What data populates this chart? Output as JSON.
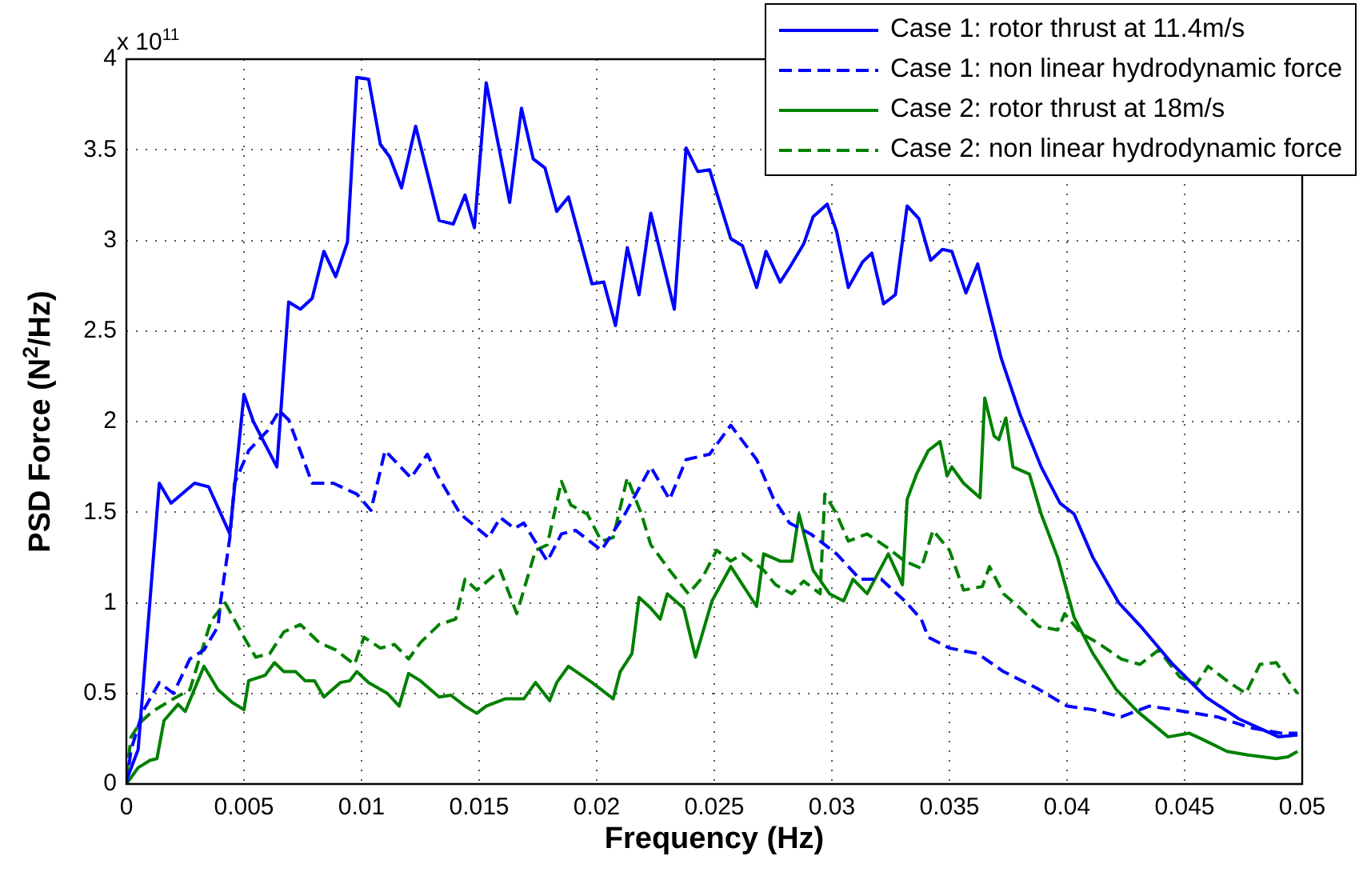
{
  "chart_data": {
    "type": "line",
    "xlabel": "Frequency (Hz)",
    "ylabel": "PSD Force (N$^{2}$/Hz)",
    "annotations": [
      "x 10$^{11}$"
    ],
    "xlim": [
      0,
      0.05
    ],
    "xticks": [
      0,
      0.005,
      0.01,
      0.015,
      0.02,
      0.025,
      0.03,
      0.035,
      0.04,
      0.045,
      0.05
    ],
    "ylim": [
      0,
      4
    ],
    "yticks": [
      0,
      0.5,
      1,
      1.5,
      2,
      2.5,
      3,
      3.5,
      4
    ],
    "grid": true,
    "legend": "top right",
    "marker": "none",
    "series": [
      {
        "name": "Case 1: rotor thrust at 11.4m/s",
        "color": "#0000ff",
        "line_style": "solid",
        "x": [
          0,
          0.0005,
          0.0014,
          0.0019,
          0.0029,
          0.0035,
          0.0044,
          0.005,
          0.0054,
          0.0064,
          0.0069,
          0.0074,
          0.0079,
          0.0084,
          0.0089,
          0.0094,
          0.0098,
          0.0103,
          0.0108,
          0.0112,
          0.0117,
          0.0123,
          0.0133,
          0.0139,
          0.0144,
          0.0148,
          0.0153,
          0.0163,
          0.0168,
          0.0173,
          0.0178,
          0.0183,
          0.0188,
          0.0198,
          0.0203,
          0.0208,
          0.0213,
          0.0218,
          0.0223,
          0.0233,
          0.0238,
          0.0243,
          0.0248,
          0.0257,
          0.0262,
          0.0268,
          0.0272,
          0.0278,
          0.0282,
          0.0288,
          0.0292,
          0.0298,
          0.0302,
          0.0307,
          0.0313,
          0.0317,
          0.0322,
          0.0327,
          0.0332,
          0.0337,
          0.0342,
          0.0347,
          0.0351,
          0.0357,
          0.0362,
          0.0372,
          0.038,
          0.0389,
          0.0397,
          0.0403,
          0.0411,
          0.0422,
          0.0432,
          0.0445,
          0.0459,
          0.0473,
          0.049,
          0.0498
        ],
        "values": [
          0.02,
          0.19,
          1.66,
          1.55,
          1.66,
          1.64,
          1.38,
          2.15,
          2.0,
          1.75,
          2.66,
          2.62,
          2.68,
          2.94,
          2.8,
          2.99,
          3.9,
          3.89,
          3.53,
          3.46,
          3.29,
          3.63,
          3.11,
          3.09,
          3.25,
          3.07,
          3.87,
          3.21,
          3.73,
          3.45,
          3.4,
          3.16,
          3.24,
          2.76,
          2.77,
          2.53,
          2.96,
          2.7,
          3.15,
          2.62,
          3.51,
          3.38,
          3.39,
          3.01,
          2.97,
          2.74,
          2.94,
          2.77,
          2.85,
          2.98,
          3.13,
          3.2,
          3.05,
          2.74,
          2.88,
          2.93,
          2.65,
          2.7,
          3.19,
          3.12,
          2.89,
          2.95,
          2.94,
          2.71,
          2.87,
          2.35,
          2.04,
          1.75,
          1.55,
          1.49,
          1.25,
          1.0,
          0.86,
          0.66,
          0.48,
          0.36,
          0.26,
          0.27
        ]
      },
      {
        "name": "Case 1: non linear hydrodynamic force",
        "color": "#0000ff",
        "line_style": "dashed",
        "x": [
          0,
          0.0002,
          0.0007,
          0.0014,
          0.002,
          0.0027,
          0.0033,
          0.0039,
          0.004,
          0.0044,
          0.0046,
          0.0052,
          0.006,
          0.0065,
          0.0069,
          0.0079,
          0.0088,
          0.0098,
          0.0104,
          0.011,
          0.0121,
          0.0128,
          0.0132,
          0.0142,
          0.0154,
          0.0159,
          0.0165,
          0.0169,
          0.0179,
          0.0185,
          0.0191,
          0.0202,
          0.0212,
          0.0223,
          0.0231,
          0.0238,
          0.0248,
          0.0257,
          0.0268,
          0.0275,
          0.0282,
          0.0291,
          0.0302,
          0.0312,
          0.0321,
          0.0331,
          0.0338,
          0.0341,
          0.035,
          0.0362,
          0.0373,
          0.0387,
          0.04,
          0.0411,
          0.0423,
          0.0435,
          0.045,
          0.0464,
          0.0478,
          0.0491,
          0.0498
        ],
        "values": [
          0,
          0.19,
          0.4,
          0.56,
          0.5,
          0.69,
          0.74,
          0.87,
          1.0,
          1.36,
          1.66,
          1.84,
          1.95,
          2.06,
          2.01,
          1.66,
          1.66,
          1.6,
          1.51,
          1.84,
          1.69,
          1.82,
          1.71,
          1.49,
          1.36,
          1.47,
          1.41,
          1.44,
          1.23,
          1.38,
          1.4,
          1.29,
          1.49,
          1.75,
          1.57,
          1.79,
          1.82,
          1.98,
          1.79,
          1.58,
          1.44,
          1.38,
          1.27,
          1.13,
          1.13,
          1.01,
          0.91,
          0.81,
          0.75,
          0.72,
          0.62,
          0.53,
          0.43,
          0.41,
          0.37,
          0.43,
          0.4,
          0.37,
          0.31,
          0.28,
          0.28
        ]
      },
      {
        "name": "Case 2: rotor thrust at 18m/s",
        "color": "#008000",
        "line_style": "solid",
        "x": [
          0,
          0.0005,
          0.001,
          0.0013,
          0.0016,
          0.0022,
          0.0025,
          0.0033,
          0.0039,
          0.0045,
          0.005,
          0.0052,
          0.0059,
          0.0063,
          0.0067,
          0.0072,
          0.0076,
          0.008,
          0.0084,
          0.0091,
          0.0095,
          0.0098,
          0.0103,
          0.0111,
          0.0116,
          0.012,
          0.0125,
          0.0133,
          0.0138,
          0.0144,
          0.0149,
          0.0153,
          0.0161,
          0.0169,
          0.0174,
          0.018,
          0.0183,
          0.0188,
          0.0198,
          0.0207,
          0.021,
          0.0215,
          0.0218,
          0.0223,
          0.0227,
          0.023,
          0.0237,
          0.0242,
          0.0249,
          0.0257,
          0.0262,
          0.0268,
          0.0271,
          0.0278,
          0.0283,
          0.0286,
          0.0292,
          0.0299,
          0.0305,
          0.0309,
          0.0315,
          0.0324,
          0.033,
          0.0332,
          0.0336,
          0.0341,
          0.0346,
          0.0349,
          0.0351,
          0.0356,
          0.0363,
          0.0365,
          0.0369,
          0.0371,
          0.0374,
          0.0377,
          0.0384,
          0.0389,
          0.0396,
          0.0403,
          0.0411,
          0.0421,
          0.043,
          0.0443,
          0.0452,
          0.0457,
          0.0468,
          0.0477,
          0.0489,
          0.0494,
          0.0498
        ],
        "values": [
          0,
          0.09,
          0.13,
          0.14,
          0.35,
          0.44,
          0.4,
          0.65,
          0.52,
          0.45,
          0.41,
          0.57,
          0.6,
          0.67,
          0.62,
          0.62,
          0.57,
          0.57,
          0.48,
          0.56,
          0.57,
          0.62,
          0.56,
          0.5,
          0.43,
          0.61,
          0.57,
          0.48,
          0.49,
          0.43,
          0.39,
          0.43,
          0.47,
          0.47,
          0.56,
          0.46,
          0.56,
          0.65,
          0.56,
          0.47,
          0.62,
          0.72,
          1.03,
          0.97,
          0.91,
          1.05,
          0.97,
          0.7,
          1.01,
          1.2,
          1.1,
          0.98,
          1.27,
          1.23,
          1.23,
          1.49,
          1.18,
          1.05,
          1.01,
          1.13,
          1.05,
          1.27,
          1.1,
          1.57,
          1.71,
          1.84,
          1.89,
          1.7,
          1.75,
          1.66,
          1.58,
          2.13,
          1.92,
          1.9,
          2.02,
          1.75,
          1.71,
          1.49,
          1.25,
          0.92,
          0.72,
          0.52,
          0.4,
          0.26,
          0.28,
          0.25,
          0.18,
          0.16,
          0.14,
          0.15,
          0.18
        ]
      },
      {
        "name": "Case 2: non linear hydrodynamic force",
        "color": "#008000",
        "line_style": "dashed",
        "x": [
          0,
          0.0002,
          0.0006,
          0.0011,
          0.002,
          0.0027,
          0.0031,
          0.0036,
          0.0042,
          0.005,
          0.0055,
          0.0061,
          0.0067,
          0.0074,
          0.0082,
          0.0089,
          0.0097,
          0.0101,
          0.0108,
          0.0114,
          0.012,
          0.0125,
          0.0133,
          0.014,
          0.0144,
          0.0149,
          0.0159,
          0.0166,
          0.0174,
          0.0179,
          0.0185,
          0.0189,
          0.0196,
          0.0202,
          0.0207,
          0.0213,
          0.0219,
          0.0223,
          0.0231,
          0.0239,
          0.0245,
          0.0251,
          0.0257,
          0.0262,
          0.0271,
          0.0276,
          0.0283,
          0.0288,
          0.0295,
          0.0297,
          0.0302,
          0.0307,
          0.0315,
          0.0323,
          0.0331,
          0.0338,
          0.0343,
          0.035,
          0.0356,
          0.0364,
          0.0367,
          0.0373,
          0.038,
          0.0388,
          0.0396,
          0.0399,
          0.0406,
          0.0413,
          0.0423,
          0.0431,
          0.0439,
          0.0448,
          0.0455,
          0.046,
          0.0469,
          0.0476,
          0.0482,
          0.0489,
          0.0494,
          0.0498
        ],
        "values": [
          0.04,
          0.26,
          0.34,
          0.4,
          0.47,
          0.52,
          0.69,
          0.9,
          1.0,
          0.81,
          0.7,
          0.72,
          0.84,
          0.88,
          0.78,
          0.74,
          0.66,
          0.81,
          0.75,
          0.77,
          0.69,
          0.78,
          0.88,
          0.91,
          1.13,
          1.07,
          1.18,
          0.94,
          1.29,
          1.32,
          1.67,
          1.54,
          1.49,
          1.34,
          1.36,
          1.69,
          1.49,
          1.32,
          1.18,
          1.05,
          1.14,
          1.29,
          1.23,
          1.27,
          1.18,
          1.1,
          1.05,
          1.12,
          1.05,
          1.6,
          1.49,
          1.34,
          1.38,
          1.31,
          1.23,
          1.19,
          1.4,
          1.29,
          1.07,
          1.09,
          1.2,
          1.05,
          0.97,
          0.87,
          0.85,
          0.94,
          0.83,
          0.78,
          0.69,
          0.66,
          0.74,
          0.59,
          0.55,
          0.65,
          0.56,
          0.5,
          0.66,
          0.67,
          0.57,
          0.5
        ]
      }
    ]
  }
}
